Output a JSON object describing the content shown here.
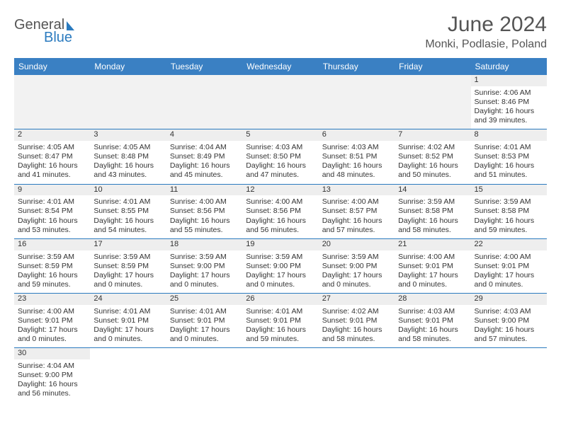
{
  "brand": {
    "part1": "General",
    "part2": "Blue"
  },
  "title": "June 2024",
  "location": "Monki, Podlasie, Poland",
  "colors": {
    "header_bg": "#3a80c3",
    "header_text": "#ffffff",
    "rule": "#2b7bbf",
    "daynum_bg": "#eeeeee",
    "text": "#333333",
    "brand_gray": "#555555",
    "brand_blue": "#2b7bbf"
  },
  "weekdays": [
    "Sunday",
    "Monday",
    "Tuesday",
    "Wednesday",
    "Thursday",
    "Friday",
    "Saturday"
  ],
  "lead_blanks": 6,
  "days": [
    {
      "n": 1,
      "sr": "4:06 AM",
      "ss": "8:46 PM",
      "dl": "16 hours and 39 minutes."
    },
    {
      "n": 2,
      "sr": "4:05 AM",
      "ss": "8:47 PM",
      "dl": "16 hours and 41 minutes."
    },
    {
      "n": 3,
      "sr": "4:05 AM",
      "ss": "8:48 PM",
      "dl": "16 hours and 43 minutes."
    },
    {
      "n": 4,
      "sr": "4:04 AM",
      "ss": "8:49 PM",
      "dl": "16 hours and 45 minutes."
    },
    {
      "n": 5,
      "sr": "4:03 AM",
      "ss": "8:50 PM",
      "dl": "16 hours and 47 minutes."
    },
    {
      "n": 6,
      "sr": "4:03 AM",
      "ss": "8:51 PM",
      "dl": "16 hours and 48 minutes."
    },
    {
      "n": 7,
      "sr": "4:02 AM",
      "ss": "8:52 PM",
      "dl": "16 hours and 50 minutes."
    },
    {
      "n": 8,
      "sr": "4:01 AM",
      "ss": "8:53 PM",
      "dl": "16 hours and 51 minutes."
    },
    {
      "n": 9,
      "sr": "4:01 AM",
      "ss": "8:54 PM",
      "dl": "16 hours and 53 minutes."
    },
    {
      "n": 10,
      "sr": "4:01 AM",
      "ss": "8:55 PM",
      "dl": "16 hours and 54 minutes."
    },
    {
      "n": 11,
      "sr": "4:00 AM",
      "ss": "8:56 PM",
      "dl": "16 hours and 55 minutes."
    },
    {
      "n": 12,
      "sr": "4:00 AM",
      "ss": "8:56 PM",
      "dl": "16 hours and 56 minutes."
    },
    {
      "n": 13,
      "sr": "4:00 AM",
      "ss": "8:57 PM",
      "dl": "16 hours and 57 minutes."
    },
    {
      "n": 14,
      "sr": "3:59 AM",
      "ss": "8:58 PM",
      "dl": "16 hours and 58 minutes."
    },
    {
      "n": 15,
      "sr": "3:59 AM",
      "ss": "8:58 PM",
      "dl": "16 hours and 59 minutes."
    },
    {
      "n": 16,
      "sr": "3:59 AM",
      "ss": "8:59 PM",
      "dl": "16 hours and 59 minutes."
    },
    {
      "n": 17,
      "sr": "3:59 AM",
      "ss": "8:59 PM",
      "dl": "17 hours and 0 minutes."
    },
    {
      "n": 18,
      "sr": "3:59 AM",
      "ss": "9:00 PM",
      "dl": "17 hours and 0 minutes."
    },
    {
      "n": 19,
      "sr": "3:59 AM",
      "ss": "9:00 PM",
      "dl": "17 hours and 0 minutes."
    },
    {
      "n": 20,
      "sr": "3:59 AM",
      "ss": "9:00 PM",
      "dl": "17 hours and 0 minutes."
    },
    {
      "n": 21,
      "sr": "4:00 AM",
      "ss": "9:01 PM",
      "dl": "17 hours and 0 minutes."
    },
    {
      "n": 22,
      "sr": "4:00 AM",
      "ss": "9:01 PM",
      "dl": "17 hours and 0 minutes."
    },
    {
      "n": 23,
      "sr": "4:00 AM",
      "ss": "9:01 PM",
      "dl": "17 hours and 0 minutes."
    },
    {
      "n": 24,
      "sr": "4:01 AM",
      "ss": "9:01 PM",
      "dl": "17 hours and 0 minutes."
    },
    {
      "n": 25,
      "sr": "4:01 AM",
      "ss": "9:01 PM",
      "dl": "17 hours and 0 minutes."
    },
    {
      "n": 26,
      "sr": "4:01 AM",
      "ss": "9:01 PM",
      "dl": "16 hours and 59 minutes."
    },
    {
      "n": 27,
      "sr": "4:02 AM",
      "ss": "9:01 PM",
      "dl": "16 hours and 58 minutes."
    },
    {
      "n": 28,
      "sr": "4:03 AM",
      "ss": "9:01 PM",
      "dl": "16 hours and 58 minutes."
    },
    {
      "n": 29,
      "sr": "4:03 AM",
      "ss": "9:00 PM",
      "dl": "16 hours and 57 minutes."
    },
    {
      "n": 30,
      "sr": "4:04 AM",
      "ss": "9:00 PM",
      "dl": "16 hours and 56 minutes."
    }
  ],
  "labels": {
    "sunrise": "Sunrise: ",
    "sunset": "Sunset: ",
    "daylight": "Daylight: "
  }
}
